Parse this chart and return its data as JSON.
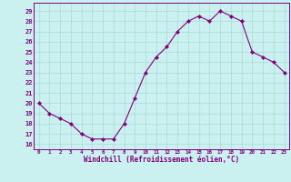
{
  "x": [
    0,
    1,
    2,
    3,
    4,
    5,
    6,
    7,
    8,
    9,
    10,
    11,
    12,
    13,
    14,
    15,
    16,
    17,
    18,
    19,
    20,
    21,
    22,
    23
  ],
  "y": [
    20,
    19,
    18.5,
    18,
    17,
    16.5,
    16.5,
    16.5,
    18,
    20.5,
    23,
    24.5,
    25.5,
    27,
    28,
    28.5,
    28,
    29,
    28.5,
    28,
    25,
    24.5,
    24,
    23
  ],
  "line_color": "#800080",
  "marker": "D",
  "marker_size": 2.0,
  "bg_color": "#caf0f0",
  "grid_color": "#a8d8d8",
  "xlabel": "Windchill (Refroidissement éolien,°C)",
  "xtick_labels": [
    "0",
    "1",
    "2",
    "3",
    "4",
    "5",
    "6",
    "7",
    "8",
    "9",
    "10",
    "11",
    "12",
    "13",
    "14",
    "15",
    "16",
    "17",
    "18",
    "19",
    "20",
    "21",
    "22",
    "23"
  ],
  "ytick_labels": [
    "16",
    "17",
    "18",
    "19",
    "20",
    "21",
    "22",
    "23",
    "24",
    "25",
    "26",
    "27",
    "28",
    "29"
  ],
  "ytick_vals": [
    16,
    17,
    18,
    19,
    20,
    21,
    22,
    23,
    24,
    25,
    26,
    27,
    28,
    29
  ],
  "ylim": [
    15.5,
    29.8
  ],
  "xlim": [
    -0.5,
    23.5
  ],
  "tick_color": "#800080",
  "label_color": "#800080",
  "spine_color": "#800080",
  "xtick_fontsize": 4.2,
  "ytick_fontsize": 5.0,
  "xlabel_fontsize": 5.5
}
